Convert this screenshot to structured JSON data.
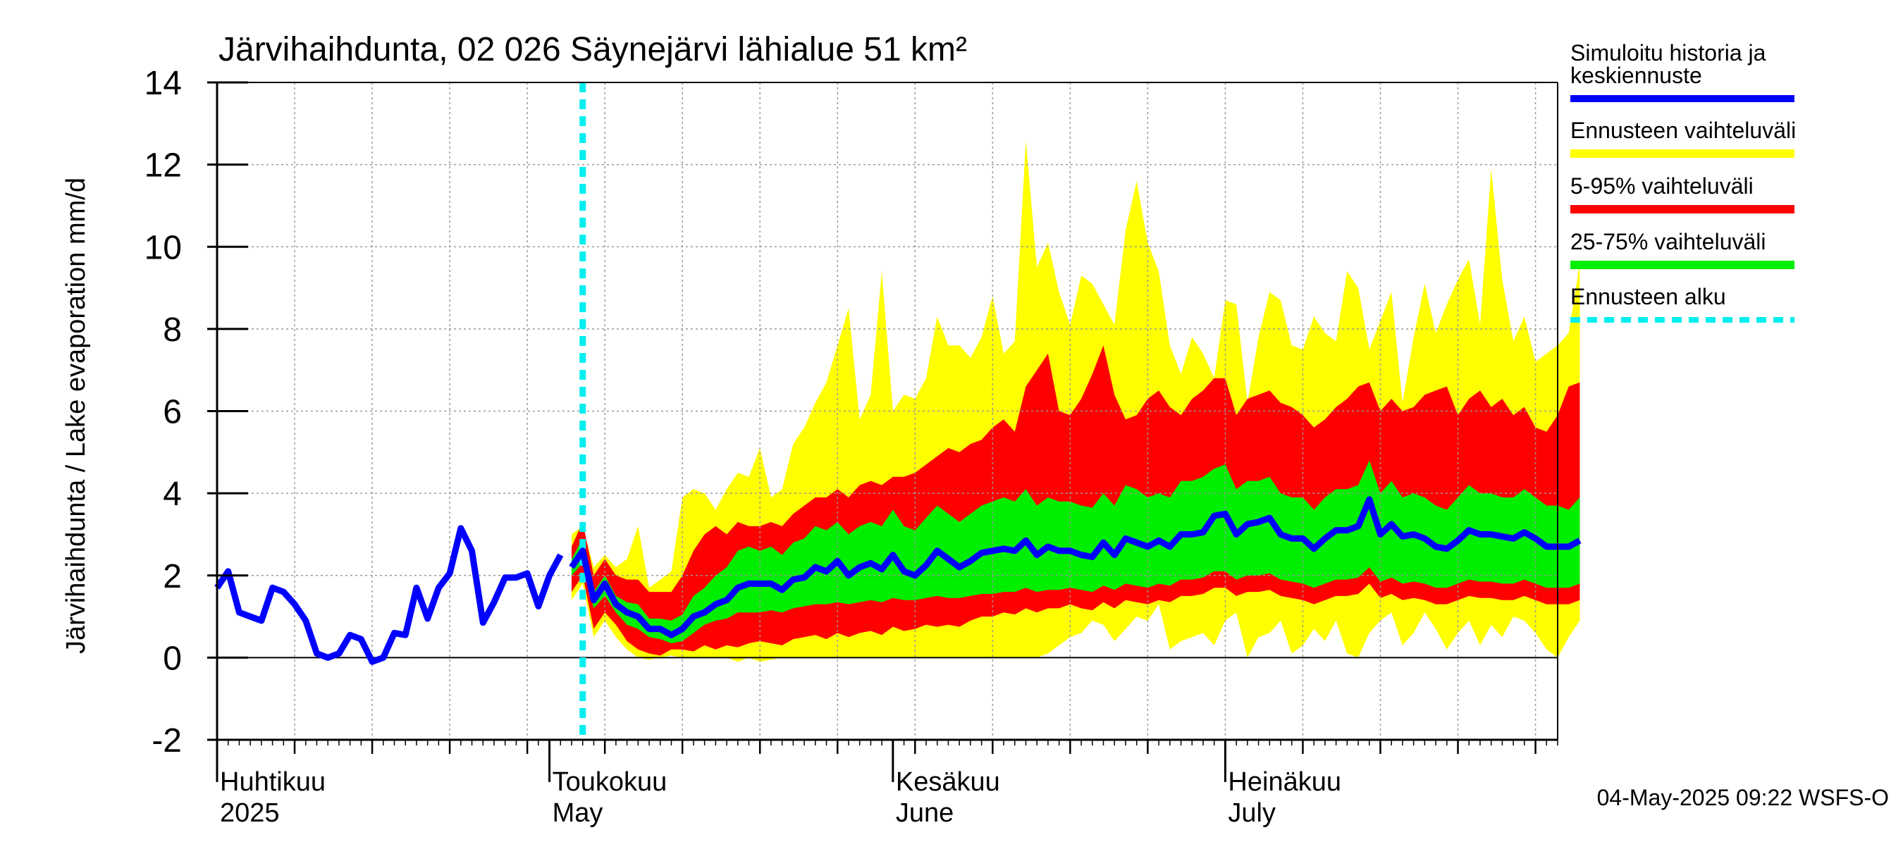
{
  "chart_data": {
    "type": "area",
    "title": "Järvihaihdunta, 02 026 Säynejärvi lähialue 51 km²",
    "ylabel": "Järvihaihdunta / Lake evaporation   mm/d",
    "ylim": [
      -2,
      14
    ],
    "yticks": [
      -2,
      0,
      2,
      4,
      6,
      8,
      10,
      12,
      14
    ],
    "xlim": [
      "2025-04-01",
      "2025-07-31"
    ],
    "month_labels": [
      {
        "date": "2025-04-01",
        "fi": "Huhtikuu",
        "en": "2025"
      },
      {
        "date": "2025-05-01",
        "fi": "Toukokuu",
        "en": "May"
      },
      {
        "date": "2025-06-01",
        "fi": "Kesäkuu",
        "en": "June"
      },
      {
        "date": "2025-07-01",
        "fi": "Heinäkuu",
        "en": "July"
      }
    ],
    "grid": true,
    "forecast_start": "2025-05-04",
    "footer": "04-May-2025 09:22 WSFS-O",
    "legend": [
      {
        "label": "Simuloitu historia ja keskiennuste",
        "color": "#0000ff",
        "style": "line"
      },
      {
        "label": "Ennusteen vaihteluväli",
        "color": "#ffff00",
        "style": "band"
      },
      {
        "label": "5-95% vaihteluväli",
        "color": "#ff0000",
        "style": "band"
      },
      {
        "label": "25-75% vaihteluväli",
        "color": "#00ee00",
        "style": "band"
      },
      {
        "label": "Ennusteen alku",
        "color": "#00eeee",
        "style": "dashed"
      }
    ],
    "history": {
      "name": "Simuloitu historia",
      "start": "2025-04-01",
      "values": [
        1.7,
        2.1,
        1.1,
        1.0,
        0.9,
        1.7,
        1.6,
        1.3,
        0.9,
        0.1,
        0.0,
        0.1,
        0.55,
        0.45,
        -0.1,
        0.0,
        0.6,
        0.55,
        1.7,
        0.95,
        1.7,
        2.05,
        3.15,
        2.6,
        0.85,
        1.35,
        1.95,
        1.95,
        2.05,
        1.25,
        2.0,
        2.5
      ]
    },
    "forecast": {
      "start": "2025-05-03",
      "median": [
        2.2,
        2.6,
        1.4,
        1.8,
        1.3,
        1.1,
        1.0,
        0.7,
        0.7,
        0.55,
        0.7,
        1.0,
        1.1,
        1.3,
        1.4,
        1.7,
        1.8,
        1.8,
        1.8,
        1.65,
        1.9,
        1.95,
        2.2,
        2.1,
        2.35,
        2.0,
        2.2,
        2.3,
        2.15,
        2.5,
        2.1,
        2.0,
        2.25,
        2.6,
        2.4,
        2.2,
        2.35,
        2.55,
        2.6,
        2.65,
        2.6,
        2.85,
        2.5,
        2.7,
        2.6,
        2.6,
        2.5,
        2.45,
        2.8,
        2.5,
        2.9,
        2.8,
        2.7,
        2.85,
        2.7,
        3.0,
        3.0,
        3.05,
        3.45,
        3.5,
        3.0,
        3.25,
        3.3,
        3.4,
        3.0,
        2.9,
        2.9,
        2.65,
        2.9,
        3.1,
        3.1,
        3.2,
        3.85,
        3.0,
        3.25,
        2.95,
        3.0,
        2.9,
        2.7,
        2.65,
        2.85,
        3.1,
        3.0,
        3.0,
        2.95,
        2.9,
        3.05,
        2.9,
        2.7,
        2.7,
        2.7,
        2.85
      ],
      "p25": [
        2.0,
        2.3,
        1.2,
        1.5,
        1.1,
        0.8,
        0.7,
        0.5,
        0.45,
        0.35,
        0.4,
        0.6,
        0.8,
        0.9,
        0.95,
        1.1,
        1.1,
        1.1,
        1.15,
        1.1,
        1.2,
        1.25,
        1.3,
        1.3,
        1.35,
        1.3,
        1.35,
        1.4,
        1.35,
        1.45,
        1.4,
        1.4,
        1.45,
        1.5,
        1.45,
        1.45,
        1.5,
        1.55,
        1.55,
        1.6,
        1.6,
        1.7,
        1.6,
        1.65,
        1.65,
        1.7,
        1.65,
        1.6,
        1.75,
        1.65,
        1.8,
        1.75,
        1.7,
        1.8,
        1.75,
        1.9,
        1.9,
        1.95,
        2.1,
        2.1,
        1.9,
        2.0,
        2.0,
        2.05,
        1.9,
        1.85,
        1.8,
        1.7,
        1.8,
        1.9,
        1.9,
        1.95,
        2.2,
        1.85,
        1.95,
        1.8,
        1.85,
        1.8,
        1.7,
        1.7,
        1.8,
        1.9,
        1.85,
        1.85,
        1.8,
        1.8,
        1.9,
        1.8,
        1.7,
        1.7,
        1.7,
        1.8
      ],
      "p75": [
        2.4,
        2.9,
        1.6,
        2.0,
        1.5,
        1.35,
        1.3,
        0.95,
        0.95,
        0.9,
        1.05,
        1.5,
        1.7,
        2.0,
        2.2,
        2.6,
        2.7,
        2.6,
        2.7,
        2.5,
        2.8,
        2.9,
        3.2,
        3.1,
        3.3,
        3.0,
        3.2,
        3.3,
        3.2,
        3.6,
        3.2,
        3.1,
        3.4,
        3.7,
        3.5,
        3.3,
        3.5,
        3.7,
        3.8,
        3.9,
        3.8,
        4.1,
        3.7,
        3.9,
        3.8,
        3.8,
        3.7,
        3.65,
        4.0,
        3.7,
        4.2,
        4.1,
        3.9,
        4.0,
        3.9,
        4.3,
        4.3,
        4.4,
        4.6,
        4.7,
        4.1,
        4.3,
        4.3,
        4.4,
        4.0,
        3.9,
        3.9,
        3.6,
        3.9,
        4.1,
        4.1,
        4.2,
        4.8,
        4.0,
        4.3,
        3.9,
        4.0,
        3.9,
        3.7,
        3.6,
        3.9,
        4.2,
        4.0,
        4.0,
        3.9,
        3.9,
        4.1,
        3.9,
        3.7,
        3.7,
        3.6,
        3.9
      ],
      "p05": [
        1.6,
        2.0,
        0.7,
        1.1,
        0.8,
        0.4,
        0.2,
        0.1,
        0.05,
        0.2,
        0.2,
        0.15,
        0.3,
        0.2,
        0.3,
        0.25,
        0.35,
        0.4,
        0.35,
        0.3,
        0.45,
        0.5,
        0.55,
        0.45,
        0.6,
        0.5,
        0.6,
        0.65,
        0.55,
        0.75,
        0.65,
        0.7,
        0.8,
        0.75,
        0.8,
        0.75,
        0.9,
        1.0,
        1.0,
        1.1,
        1.05,
        1.2,
        1.1,
        1.2,
        1.2,
        1.3,
        1.2,
        1.15,
        1.35,
        1.2,
        1.4,
        1.35,
        1.3,
        1.4,
        1.35,
        1.5,
        1.5,
        1.55,
        1.7,
        1.7,
        1.5,
        1.6,
        1.6,
        1.65,
        1.5,
        1.45,
        1.4,
        1.3,
        1.4,
        1.5,
        1.5,
        1.55,
        1.8,
        1.45,
        1.55,
        1.4,
        1.45,
        1.4,
        1.3,
        1.3,
        1.4,
        1.5,
        1.45,
        1.45,
        1.4,
        1.4,
        1.5,
        1.4,
        1.3,
        1.3,
        1.3,
        1.4
      ],
      "p95": [
        2.7,
        3.3,
        2.0,
        2.4,
        2.0,
        1.9,
        1.9,
        1.6,
        1.6,
        1.6,
        2.0,
        2.6,
        3.0,
        3.2,
        3.0,
        3.3,
        3.2,
        3.2,
        3.3,
        3.2,
        3.5,
        3.7,
        3.9,
        3.9,
        4.1,
        3.9,
        4.2,
        4.3,
        4.2,
        4.4,
        4.4,
        4.5,
        4.7,
        4.9,
        5.1,
        5.0,
        5.2,
        5.3,
        5.6,
        5.8,
        5.5,
        6.6,
        7.0,
        7.4,
        6.0,
        5.9,
        6.3,
        6.9,
        7.6,
        6.4,
        5.8,
        5.9,
        6.3,
        6.5,
        6.1,
        5.9,
        6.3,
        6.5,
        6.8,
        6.8,
        5.9,
        6.3,
        6.4,
        6.5,
        6.2,
        6.1,
        5.9,
        5.6,
        5.8,
        6.1,
        6.3,
        6.6,
        6.7,
        6.0,
        6.3,
        6.0,
        6.1,
        6.4,
        6.5,
        6.6,
        5.9,
        6.3,
        6.5,
        6.1,
        6.3,
        5.9,
        6.1,
        5.6,
        5.5,
        5.9,
        6.6,
        6.7
      ],
      "max": [
        3.0,
        3.2,
        2.2,
        2.5,
        2.2,
        2.4,
        3.2,
        1.7,
        1.9,
        2.1,
        3.9,
        4.1,
        4.0,
        3.6,
        4.1,
        4.5,
        4.4,
        5.1,
        3.9,
        4.1,
        5.2,
        5.6,
        6.2,
        6.7,
        7.6,
        8.5,
        5.8,
        6.4,
        9.4,
        6.0,
        6.4,
        6.3,
        6.8,
        8.3,
        7.6,
        7.6,
        7.3,
        7.8,
        8.8,
        7.4,
        7.7,
        12.6,
        9.5,
        10.1,
        8.9,
        8.1,
        9.3,
        9.1,
        8.6,
        8.1,
        10.4,
        11.6,
        10.1,
        9.4,
        7.6,
        6.9,
        7.8,
        7.4,
        6.8,
        8.7,
        8.6,
        6.2,
        7.8,
        8.9,
        8.7,
        7.6,
        7.5,
        8.3,
        7.9,
        7.7,
        9.4,
        9.0,
        7.5,
        8.2,
        8.9,
        6.2,
        7.8,
        9.1,
        7.9,
        8.6,
        9.2,
        9.7,
        8.1,
        11.9,
        9.2,
        7.7,
        8.3,
        7.2,
        7.4,
        7.6,
        7.9,
        9.6
      ],
      "min": [
        1.4,
        1.8,
        0.5,
        0.9,
        0.5,
        0.2,
        0.0,
        -0.05,
        0.0,
        0.05,
        0.0,
        0.0,
        0.0,
        0.0,
        0.0,
        -0.1,
        0.0,
        -0.1,
        -0.05,
        0.0,
        0.0,
        0.0,
        0.0,
        0.0,
        0.0,
        0.0,
        0.0,
        0.0,
        0.0,
        0.0,
        0.0,
        0.0,
        0.0,
        0.0,
        0.0,
        0.0,
        0.0,
        0.0,
        0.0,
        0.0,
        0.0,
        0.0,
        0.0,
        0.1,
        0.3,
        0.5,
        0.6,
        0.9,
        0.8,
        0.4,
        0.7,
        1.0,
        0.9,
        1.3,
        0.2,
        0.4,
        0.5,
        0.6,
        0.3,
        0.9,
        1.1,
        0.0,
        0.5,
        0.6,
        0.9,
        0.1,
        0.3,
        0.7,
        0.4,
        0.9,
        0.1,
        0.0,
        0.6,
        0.9,
        1.1,
        0.3,
        0.6,
        1.1,
        0.7,
        0.2,
        0.6,
        0.9,
        0.3,
        0.8,
        0.5,
        1.0,
        0.9,
        0.6,
        0.2,
        0.0,
        0.5,
        0.9
      ]
    }
  }
}
